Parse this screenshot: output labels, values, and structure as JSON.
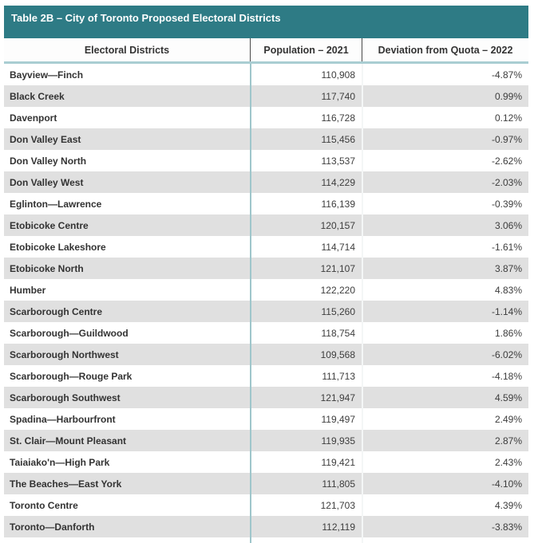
{
  "table": {
    "title": "Table 2B – City of Toronto Proposed Electoral Districts",
    "columns": [
      "Electoral Districts",
      "Population – 2021",
      "Deviation from Quota – 2022"
    ],
    "rows": [
      {
        "district": "Bayview—Finch",
        "population": "110,908",
        "deviation": "-4.87%"
      },
      {
        "district": "Black Creek",
        "population": "117,740",
        "deviation": "0.99%"
      },
      {
        "district": "Davenport",
        "population": "116,728",
        "deviation": "0.12%"
      },
      {
        "district": "Don Valley East",
        "population": "115,456",
        "deviation": "-0.97%"
      },
      {
        "district": "Don Valley North",
        "population": "113,537",
        "deviation": "-2.62%"
      },
      {
        "district": "Don Valley West",
        "population": "114,229",
        "deviation": "-2.03%"
      },
      {
        "district": "Eglinton—Lawrence",
        "population": "116,139",
        "deviation": "-0.39%"
      },
      {
        "district": "Etobicoke Centre",
        "population": "120,157",
        "deviation": "3.06%"
      },
      {
        "district": "Etobicoke Lakeshore",
        "population": "114,714",
        "deviation": "-1.61%"
      },
      {
        "district": "Etobicoke North",
        "population": "121,107",
        "deviation": "3.87%"
      },
      {
        "district": "Humber",
        "population": "122,220",
        "deviation": "4.83%"
      },
      {
        "district": "Scarborough Centre",
        "population": "115,260",
        "deviation": "-1.14%"
      },
      {
        "district": "Scarborough—Guildwood",
        "population": "118,754",
        "deviation": "1.86%"
      },
      {
        "district": "Scarborough Northwest",
        "population": "109,568",
        "deviation": "-6.02%"
      },
      {
        "district": "Scarborough—Rouge Park",
        "population": "111,713",
        "deviation": "-4.18%"
      },
      {
        "district": "Scarborough Southwest",
        "population": "121,947",
        "deviation": "4.59%"
      },
      {
        "district": "Spadina—Harbourfront",
        "population": "119,497",
        "deviation": "2.49%"
      },
      {
        "district": "St. Clair—Mount Pleasant",
        "population": "119,935",
        "deviation": "2.87%"
      },
      {
        "district": "Taiaiako'n—High Park",
        "population": "119,421",
        "deviation": "2.43%"
      },
      {
        "district": "The Beaches—East York",
        "population": "111,805",
        "deviation": "-4.10%"
      },
      {
        "district": "Toronto Centre",
        "population": "121,703",
        "deviation": "4.39%"
      },
      {
        "district": "Toronto—Danforth",
        "population": "112,119",
        "deviation": "-3.83%"
      }
    ]
  },
  "colors": {
    "title_bar_teal": "#2e7b85",
    "separator_teal": "#a9cdd2",
    "body_divider_teal": "#9fc6cb",
    "header_divider_dark": "#4a4a4a",
    "row_alternate_gray": "#e0e0e0",
    "text_dark": "#333333",
    "title_text": "#ffffff"
  }
}
